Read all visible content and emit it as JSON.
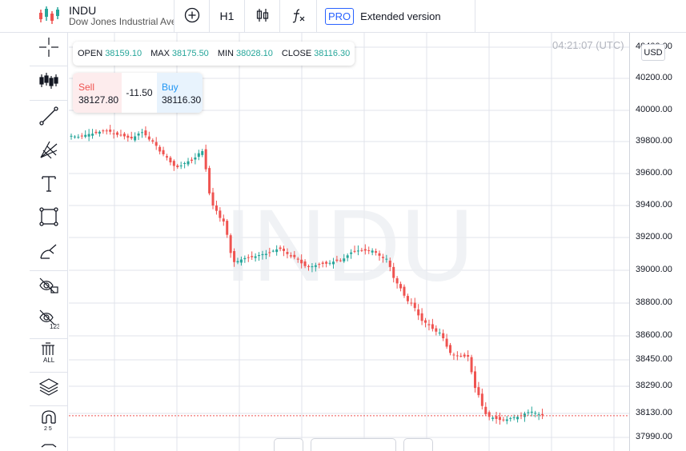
{
  "symbol": {
    "ticker": "INDU",
    "full_name": "Dow Jones Industrial Average"
  },
  "toolbar": {
    "add_indicator_icon": "plus-circle-icon",
    "interval": "H1",
    "chart_type_icon": "candles-icon",
    "indicators_icon": "function-icon",
    "pro_badge": "PRO",
    "extended_label": "Extended version"
  },
  "left_tools": [
    "crosshair-icon",
    "candles-icon",
    "trend-line-icon",
    "fib-fan-icon",
    "text-icon",
    "rectangle-icon",
    "brush-icon",
    "hide-drawings-icon",
    "hide-indicators-icon",
    "remove-all-icon",
    "layers-icon",
    "magnet-icon"
  ],
  "ohlc": {
    "open_label": "OPEN",
    "open": "38159.10",
    "max_label": "MAX",
    "max": "38175.50",
    "min_label": "MIN",
    "min": "38028.10",
    "close_label": "CLOSE",
    "close": "38116.30"
  },
  "trade": {
    "sell_label": "Sell",
    "sell_price": "38127.80",
    "spread": "-11.50",
    "buy_label": "Buy",
    "buy_price": "38116.30"
  },
  "watermark": "INDU",
  "time": "04:21:07 (UTC)",
  "currency": "USD",
  "colors": {
    "up": "#26a69a",
    "down": "#ef5350",
    "grid": "#e0e3eb",
    "price_line": "#ef5350"
  },
  "chart_data": {
    "type": "candlestick",
    "yaxis_ticks": [
      "40400.00",
      "40200.00",
      "40000.00",
      "39800.00",
      "39600.00",
      "39400.00",
      "39200.00",
      "39000.00",
      "38800.00",
      "38600.00",
      "38450.00",
      "38290.00",
      "38130.00",
      "37990.00"
    ],
    "current_price": 38116.3
  }
}
